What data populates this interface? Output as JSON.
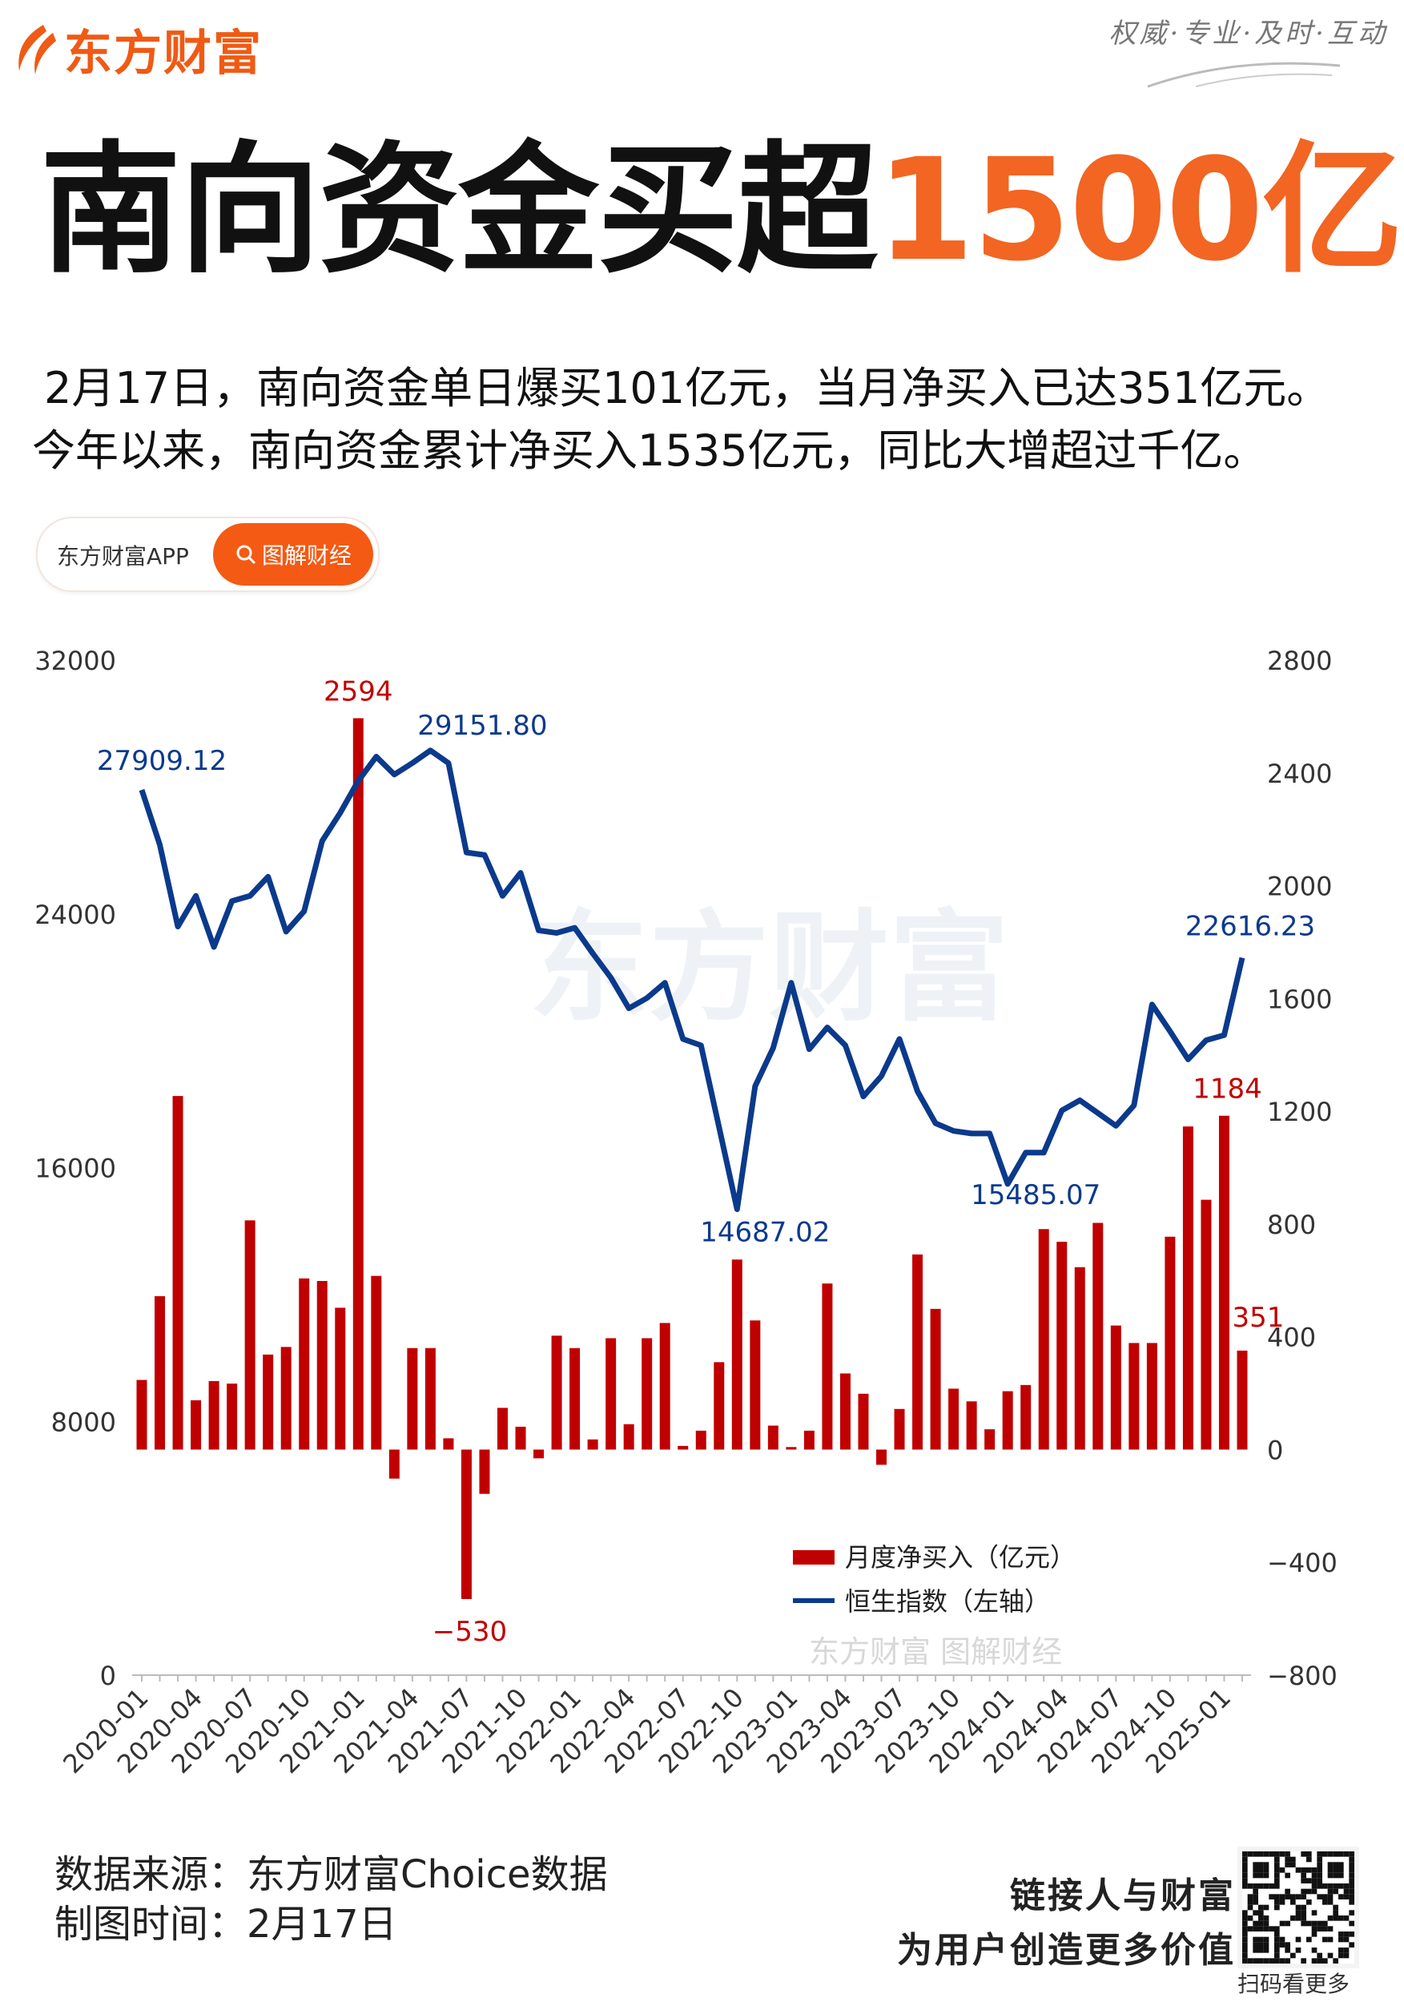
{
  "brand": {
    "name": "东方财富",
    "slogan": "权威·专业·及时·互动",
    "color": "#f26522"
  },
  "headline": {
    "main": "南向资金买超",
    "highlight": "1500亿"
  },
  "subtitle": {
    "line1": "2月17日，南向资金单日爆买101亿元，当月净买入已达351亿元。",
    "line2": "今年以来，南向资金累计净买入1535亿元，同比大增超过千亿。"
  },
  "pill": {
    "app_label": "东方财富APP",
    "button_label": "图解财经",
    "button_icon": "search-icon"
  },
  "watermark": {
    "big": "东方财富",
    "small": "东方财富 图解财经"
  },
  "footer": {
    "source": "数据来源：东方财富Choice数据",
    "date": "制图时间：2月17日",
    "slogan1": "链接人与财富",
    "slogan2": "为用户创造更多价值",
    "qr_caption": "扫码看更多"
  },
  "chart_data": {
    "type": "bar+line",
    "x_tick_labels": [
      "2020-01",
      "2020-04",
      "2020-07",
      "2020-10",
      "2021-01",
      "2021-04",
      "2021-07",
      "2021-10",
      "2022-01",
      "2022-04",
      "2022-07",
      "2022-10",
      "2023-01",
      "2023-04",
      "2023-07",
      "2023-10",
      "2024-01",
      "2024-04",
      "2024-07",
      "2024-10",
      "2025-01"
    ],
    "x_start": "2020-01",
    "x_end": "2025-02",
    "left_axis": {
      "ylim": [
        0,
        32000
      ],
      "ticks": [
        0,
        8000,
        16000,
        24000,
        32000
      ]
    },
    "right_axis": {
      "ylim": [
        -800,
        2800
      ],
      "ticks": [
        -800,
        -400,
        0,
        400,
        800,
        1200,
        1600,
        2000,
        2400,
        2800
      ]
    },
    "colors": {
      "bars": "#c00000",
      "line": "#0b3a8c"
    },
    "legend": {
      "position": "bottom-right",
      "entries": [
        "月度净买入（亿元）",
        "恒生指数（左轴）"
      ]
    },
    "series": [
      {
        "name": "月度净买入（亿元）",
        "axis": "right",
        "type": "bar",
        "values": [
          247,
          544,
          1254,
          175,
          243,
          234,
          813,
          337,
          364,
          607,
          598,
          503,
          2594,
          616,
          -103,
          360,
          360,
          40,
          -530,
          -157,
          148,
          81,
          -31,
          404,
          360,
          36,
          395,
          90,
          395,
          449,
          13,
          67,
          310,
          674,
          458,
          85,
          9,
          67,
          589,
          270,
          198,
          -54,
          144,
          692,
          499,
          216,
          171,
          72,
          207,
          229,
          782,
          737,
          647,
          804,
          440,
          378,
          378,
          755,
          1146,
          886,
          1184,
          351
        ]
      },
      {
        "name": "恒生指数（左轴）",
        "axis": "left",
        "type": "line",
        "values": [
          27909.12,
          26178,
          23600,
          24567,
          22956,
          24405,
          24567,
          25171,
          23439,
          24083,
          26298,
          27185,
          28192,
          28957,
          28393,
          28755,
          29151.8,
          28755,
          25936,
          25856,
          24567,
          25292,
          23480,
          23399,
          23560,
          22755,
          21990,
          21023,
          21345,
          21828,
          20056,
          19855,
          17277,
          14687.02,
          18566,
          19774,
          21828,
          19734,
          20419,
          19855,
          18244,
          18888,
          20056,
          18405,
          17398,
          17157,
          17076,
          17076,
          15485.07,
          16472,
          16472,
          17801,
          18123,
          17720,
          17318,
          17962,
          21144,
          20298,
          19412,
          20016,
          20177,
          22616.23
        ]
      }
    ],
    "annotations": [
      {
        "series": 0,
        "index": 12,
        "text": "2594"
      },
      {
        "series": 0,
        "index": 18,
        "text": "-530"
      },
      {
        "series": 0,
        "index": 60,
        "text": "1184"
      },
      {
        "series": 0,
        "index": 61,
        "text": "351"
      },
      {
        "series": 1,
        "index": 0,
        "text": "27909.12"
      },
      {
        "series": 1,
        "index": 16,
        "text": "29151.80"
      },
      {
        "series": 1,
        "index": 33,
        "text": "14687.02"
      },
      {
        "series": 1,
        "index": 48,
        "text": "15485.07"
      },
      {
        "series": 1,
        "index": 61,
        "text": "22616.23"
      }
    ]
  }
}
